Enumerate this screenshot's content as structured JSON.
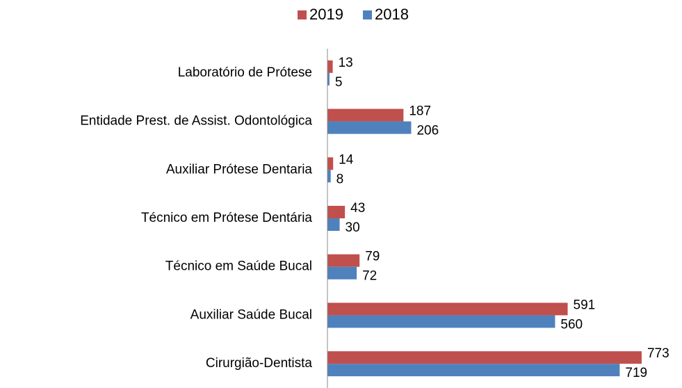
{
  "chart_data": {
    "type": "bar",
    "orientation": "horizontal",
    "categories": [
      "Laboratório de Prótese",
      "Entidade Prest. de Assist. Odontológica",
      "Auxiliar Prótese Dentaria",
      "Técnico em Prótese Dentária",
      "Técnico em Saúde Bucal",
      "Auxiliar Saúde Bucal",
      "Cirurgião-Dentista"
    ],
    "series": [
      {
        "name": "2019",
        "color": "#c0504d",
        "values": [
          13,
          187,
          14,
          43,
          79,
          591,
          773
        ]
      },
      {
        "name": "2018",
        "color": "#4f81bd",
        "values": [
          5,
          206,
          8,
          30,
          72,
          560,
          719
        ]
      }
    ],
    "xlim": [
      0,
      850
    ],
    "legend": "top"
  }
}
